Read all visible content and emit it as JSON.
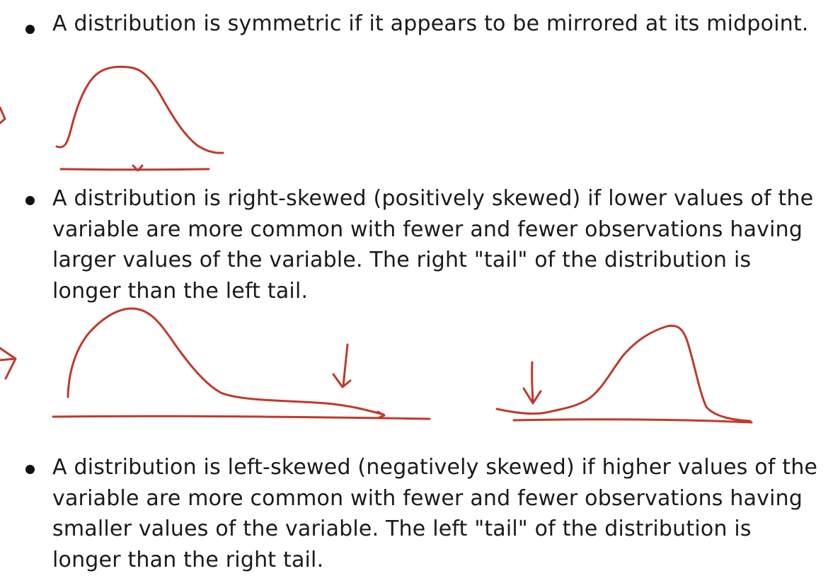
{
  "slide": {
    "bullets": [
      {
        "text": "A distribution is symmetric if it appears to be mirrored at its midpoint."
      },
      {
        "text": "A distribution is right-skewed (positively skewed) if lower values of the\nvariable are more common with fewer and fewer observations having\nlarger values of the variable.  The right \"tail\" of the distribution is\nlonger than the left tail."
      },
      {
        "text": "A distribution is left-skewed (negatively skewed) if higher values of the\nvariable are more common with fewer and fewer observations having\nsmaller values of the variable.  The left \"tail\" of the distribution is\nlonger than the right tail."
      }
    ]
  },
  "annotations": {
    "ink_color": "#c0392b",
    "sketches": [
      {
        "name": "symmetric-curve",
        "shape": "bell"
      },
      {
        "name": "right-skewed-curve",
        "shape": "right-tail",
        "marker": "down-arrow"
      },
      {
        "name": "left-skewed-curve",
        "shape": "left-tail",
        "marker": "down-arrow"
      }
    ]
  }
}
